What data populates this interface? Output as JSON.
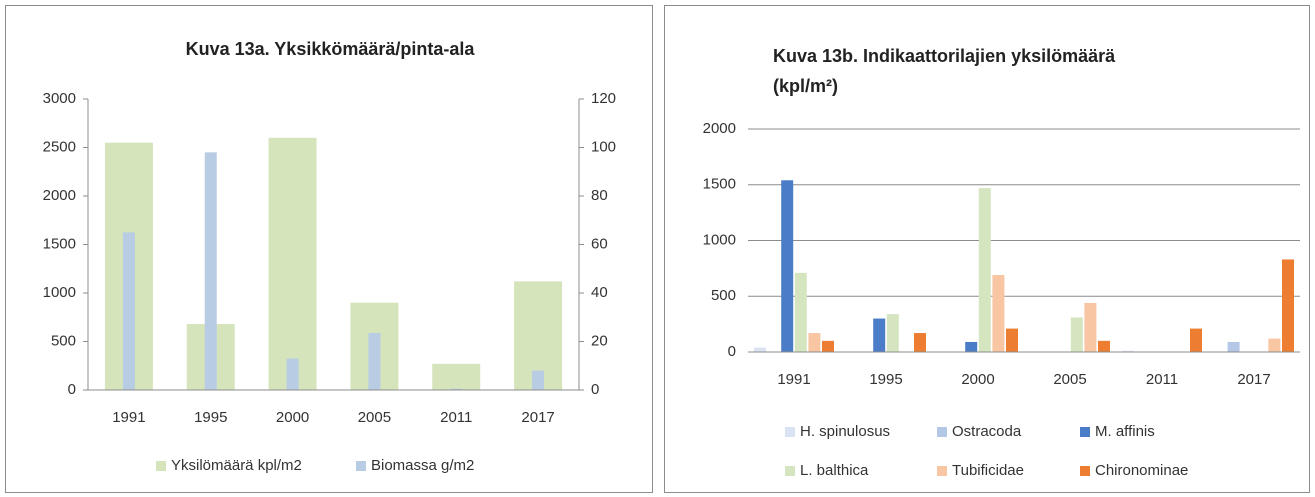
{
  "chart_data": [
    {
      "type": "bar",
      "title": "Kuva 13a. Yksikkömäärä/pinta-ala",
      "categories": [
        "1991",
        "1995",
        "2000",
        "2005",
        "2011",
        "2017"
      ],
      "series": [
        {
          "name": "Yksilömäärä kpl/m2",
          "color": "#d6e4bc",
          "values": [
            2550,
            680,
            2600,
            900,
            270,
            1120
          ]
        },
        {
          "name": "Biomassa g/m2",
          "color": "#b8cce4",
          "axis": "y2",
          "values": [
            65,
            98,
            13,
            23.5,
            0.5,
            8
          ]
        }
      ],
      "ylim": [
        0,
        3000
      ],
      "yticks": [
        0,
        500,
        1000,
        1500,
        2000,
        2500,
        3000
      ],
      "y2lim": [
        0,
        120
      ],
      "y2ticks": [
        0,
        20,
        40,
        60,
        80,
        100,
        120
      ],
      "grid": false,
      "legend": "bottom"
    },
    {
      "type": "bar",
      "title": "Kuva 13b. Indikaattorilajien yksilömäärä (kpl/m²)",
      "categories": [
        "1991",
        "1995",
        "2000",
        "2005",
        "2011",
        "2017"
      ],
      "series": [
        {
          "name": "H. spinulosus",
          "color": "#dae3f3",
          "values": [
            40,
            0,
            0,
            0,
            10,
            0
          ]
        },
        {
          "name": "Ostracoda",
          "color": "#b4c7e7",
          "values": [
            0,
            0,
            0,
            0,
            0,
            90
          ]
        },
        {
          "name": "M. affinis",
          "color": "#4a7cc7",
          "values": [
            1540,
            300,
            90,
            0,
            0,
            0
          ]
        },
        {
          "name": "L. balthica",
          "color": "#d5e5c0",
          "values": [
            710,
            340,
            1470,
            310,
            0,
            0
          ]
        },
        {
          "name": "Tubificidae",
          "color": "#f8c6a2",
          "values": [
            170,
            0,
            690,
            440,
            0,
            120
          ]
        },
        {
          "name": "Chironominae",
          "color": "#ed7d31",
          "values": [
            100,
            170,
            210,
            100,
            210,
            830
          ]
        }
      ],
      "ylim": [
        0,
        2000
      ],
      "yticks": [
        0,
        500,
        1000,
        1500,
        2000
      ],
      "grid": true,
      "legend": "bottom"
    }
  ]
}
